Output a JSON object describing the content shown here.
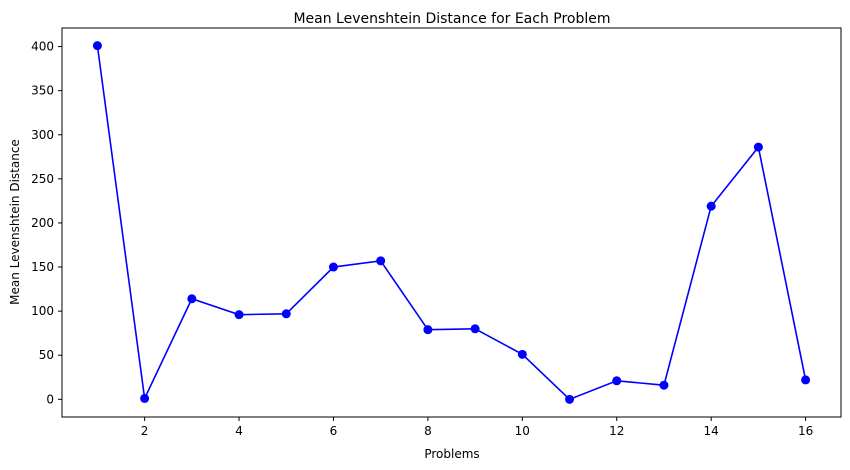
{
  "chart_data": {
    "type": "line",
    "title": "Mean Levenshtein Distance for Each Problem",
    "xlabel": "Problems",
    "ylabel": "Mean Levenshtein Distance",
    "x": [
      1,
      2,
      3,
      4,
      5,
      6,
      7,
      8,
      9,
      10,
      11,
      12,
      13,
      14,
      15,
      16
    ],
    "series": [
      {
        "values": [
          401,
          1,
          114,
          96,
          97,
          150,
          157,
          79,
          80,
          51,
          0,
          21,
          16,
          219,
          286,
          22
        ],
        "color": "#0000ff",
        "marker": "circle"
      }
    ],
    "xticks": [
      2,
      4,
      6,
      8,
      10,
      12,
      14,
      16
    ],
    "yticks": [
      0,
      50,
      100,
      150,
      200,
      250,
      300,
      350,
      400
    ],
    "xlim": [
      0.25,
      16.75
    ],
    "ylim": [
      -20.05,
      421.05
    ],
    "grid": false,
    "legend": "none"
  }
}
